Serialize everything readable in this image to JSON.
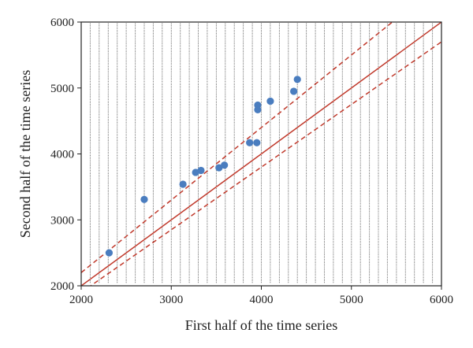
{
  "chart_data": {
    "type": "scatter",
    "title": "",
    "xlabel": "First half of the time series",
    "ylabel": "Second half of the time series",
    "xlim": [
      2000,
      6000
    ],
    "ylim": [
      2000,
      6000
    ],
    "x_ticks": [
      "2000",
      "3000",
      "4000",
      "5000",
      "6000"
    ],
    "y_ticks": [
      "2000",
      "3000",
      "4000",
      "5000",
      "6000"
    ],
    "grid": "dotted",
    "series": [
      {
        "points": [
          [
            2310,
            2500
          ],
          [
            2700,
            3310
          ],
          [
            3130,
            3540
          ],
          [
            3270,
            3720
          ],
          [
            3330,
            3750
          ],
          [
            3530,
            3790
          ],
          [
            3590,
            3830
          ],
          [
            3870,
            4170
          ],
          [
            3950,
            4170
          ],
          [
            3960,
            4670
          ],
          [
            3960,
            4740
          ],
          [
            4100,
            4800
          ],
          [
            4360,
            4950
          ],
          [
            4400,
            5130
          ]
        ],
        "color": "#4a7dbf"
      }
    ],
    "reference_lines": [
      {
        "style": "solid",
        "color": "#c0392b",
        "slope": 1.0,
        "intercept": 0
      },
      {
        "style": "dashed",
        "color": "#c0392b",
        "slope": 1.1,
        "intercept": 0
      },
      {
        "style": "dashed",
        "color": "#c0392b",
        "slope": 0.95,
        "intercept": 0
      }
    ]
  }
}
